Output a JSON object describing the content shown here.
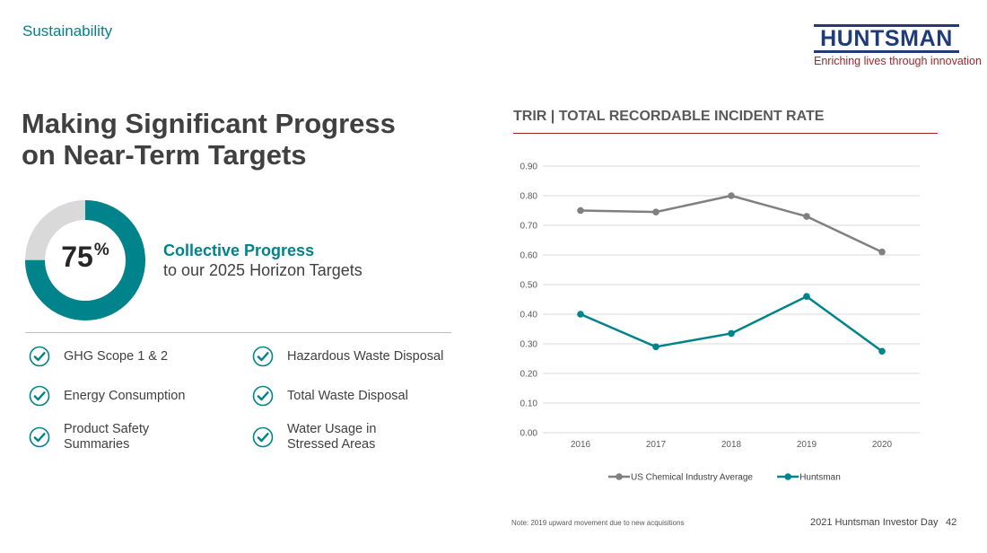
{
  "header": {
    "section": "Sustainability",
    "logo_text": "HUNTSMAN",
    "tagline": "Enriching lives through innovation"
  },
  "title": {
    "line1": "Making Significant Progress",
    "line2": "on Near-Term Targets"
  },
  "progress": {
    "percent": 75,
    "value_label": "75",
    "symbol": "%",
    "heading": "Collective Progress",
    "subheading": "to our 2025 Horizon Targets",
    "colors": {
      "filled": "#00838a",
      "remaining": "#d9d9d9"
    }
  },
  "targets": [
    {
      "label": "GHG Scope 1 & 2",
      "icon": "check-circle-icon"
    },
    {
      "label": "Hazardous Waste Disposal",
      "icon": "check-circle-icon"
    },
    {
      "label": "Energy Consumption",
      "icon": "check-circle-icon"
    },
    {
      "label": "Total Waste Disposal",
      "icon": "check-circle-icon"
    },
    {
      "label": "Product Safety Summaries",
      "icon": "check-circle-icon"
    },
    {
      "label": "Water Usage in Stressed Areas",
      "icon": "check-circle-icon"
    }
  ],
  "chart_data": {
    "type": "line",
    "title": "TRIR | TOTAL RECORDABLE INCIDENT RATE",
    "xlabel": "",
    "ylabel": "",
    "x": [
      "2016",
      "2017",
      "2018",
      "2019",
      "2020"
    ],
    "ylim": [
      0,
      0.9
    ],
    "yticks": [
      "0.00",
      "0.10",
      "0.20",
      "0.30",
      "0.40",
      "0.50",
      "0.60",
      "0.70",
      "0.80",
      "0.90"
    ],
    "grid": true,
    "legend": "bottom",
    "series": [
      {
        "name": "US Chemical Industry Average",
        "color": "#808080",
        "values": [
          0.75,
          0.745,
          0.8,
          0.73,
          0.61
        ]
      },
      {
        "name": "Huntsman",
        "color": "#00838a",
        "values": [
          0.4,
          0.29,
          0.335,
          0.46,
          0.275
        ]
      }
    ]
  },
  "footer": {
    "note": "Note: 2019 upward movement due to new acquisitions",
    "event": "2021 Huntsman Investor Day",
    "page": "42"
  }
}
